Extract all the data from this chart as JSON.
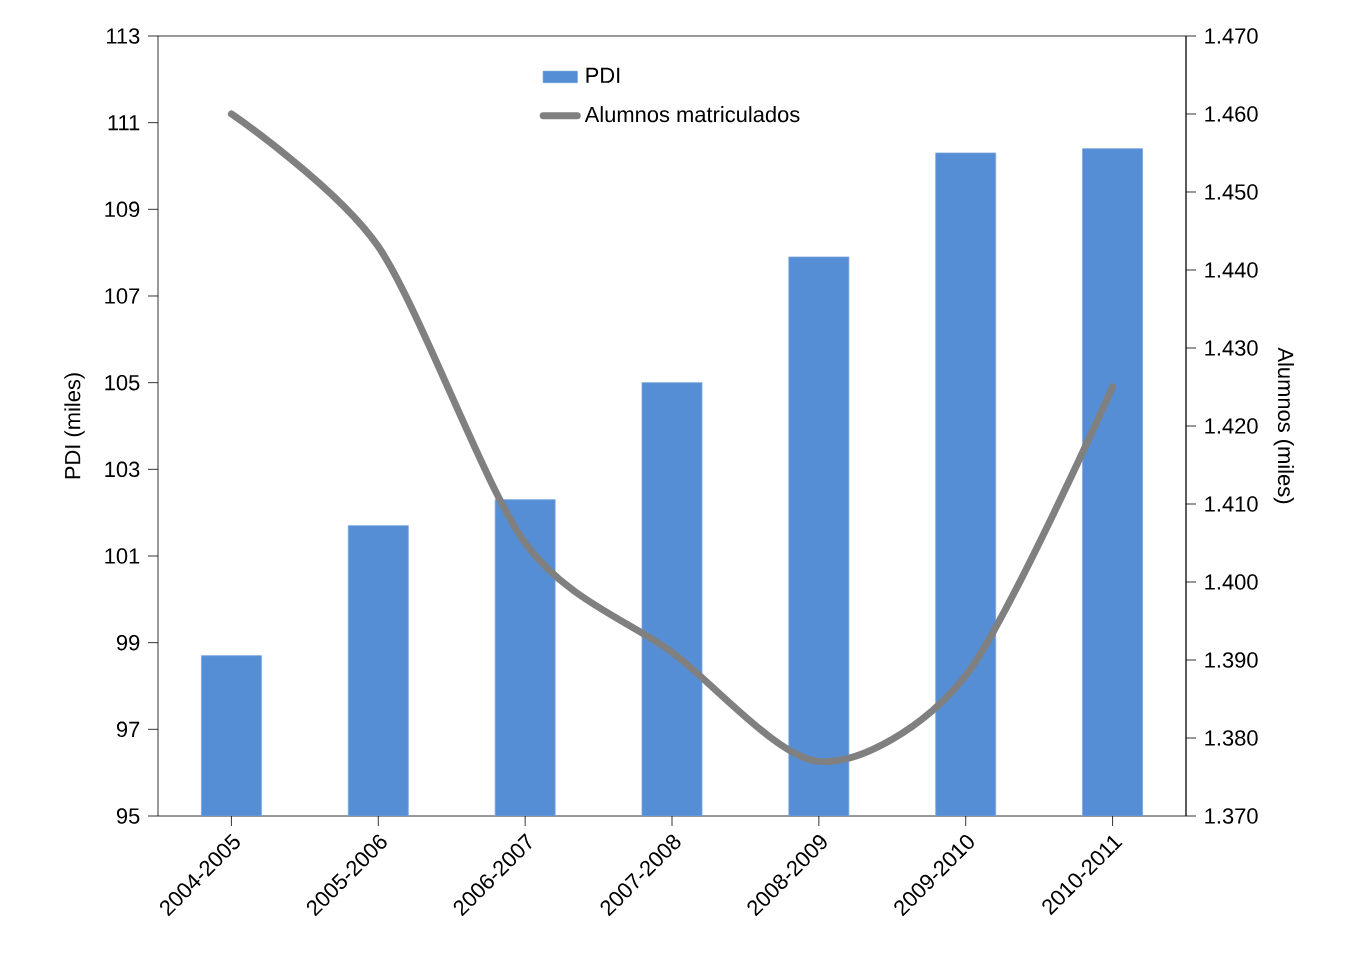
{
  "chart_data": {
    "type": "bar",
    "ylabel": "PDI (miles)",
    "y2label": "Alumnos (miles)",
    "categories": [
      "2004-2005",
      "2005-2006",
      "2006-2007",
      "2007-2008",
      "2008-2009",
      "2009-2010",
      "2010-2011"
    ],
    "series": [
      {
        "name": "PDI",
        "color": "#558ed5",
        "values": [
          98.7,
          101.7,
          102.3,
          105.0,
          107.9,
          110.3,
          110.4
        ]
      },
      {
        "name": "Alumnos matriculados",
        "type": "line",
        "axis": "y2",
        "color": "#808080",
        "values": [
          1460,
          1443,
          1405,
          1391,
          1377,
          1388,
          1425
        ]
      }
    ],
    "ylim": [
      95,
      113
    ],
    "yticks": [
      95,
      97,
      99,
      101,
      103,
      105,
      107,
      109,
      111,
      113
    ],
    "y2lim": [
      1370,
      1470
    ],
    "y2ticks": [
      {
        "value": 1370,
        "label": "1.370"
      },
      {
        "value": 1380,
        "label": "1.380"
      },
      {
        "value": 1390,
        "label": "1.390"
      },
      {
        "value": 1400,
        "label": "1.400"
      },
      {
        "value": 1410,
        "label": "1.410"
      },
      {
        "value": 1420,
        "label": "1.420"
      },
      {
        "value": 1430,
        "label": "1.430"
      },
      {
        "value": 1440,
        "label": "1.440"
      },
      {
        "value": 1450,
        "label": "1.450"
      },
      {
        "value": 1460,
        "label": "1.460"
      },
      {
        "value": 1470,
        "label": "1.470"
      }
    ],
    "grid": false,
    "legend": "top"
  }
}
